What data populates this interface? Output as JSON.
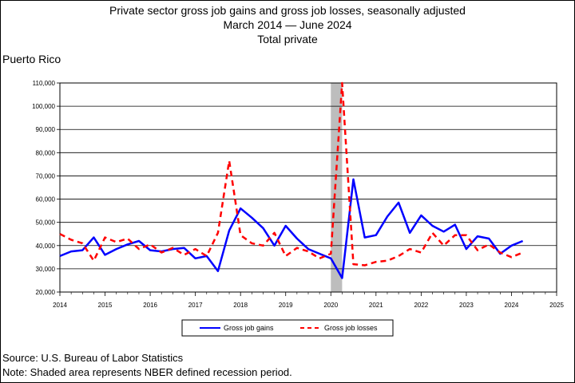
{
  "chart_data": {
    "type": "line",
    "title": "Private sector gross job gains and gross job losses, seasonally adjusted",
    "subtitle": "March 2014 — June 2024",
    "subtitle2": "Total private",
    "region": "Puerto Rico",
    "xlabel": "",
    "ylabel": "",
    "xlim": [
      2014,
      2025
    ],
    "ylim": [
      20000,
      110000
    ],
    "y_ticks": [
      "20,000",
      "30,000",
      "40,000",
      "50,000",
      "60,000",
      "70,000",
      "80,000",
      "90,000",
      "100,000",
      "110,000"
    ],
    "x_ticks": [
      "2014",
      "2015",
      "2016",
      "2017",
      "2018",
      "2019",
      "2020",
      "2021",
      "2022",
      "2023",
      "2024",
      "2025"
    ],
    "recession": [
      2020.0,
      2020.25
    ],
    "grid": true,
    "legend": "bottom-center",
    "series": [
      {
        "name": "Gross job gains",
        "color": "#0000ff",
        "style": "solid",
        "x": [
          2014.0,
          2014.25,
          2014.5,
          2014.75,
          2015.0,
          2015.25,
          2015.5,
          2015.75,
          2016.0,
          2016.25,
          2016.5,
          2016.75,
          2017.0,
          2017.25,
          2017.5,
          2017.75,
          2018.0,
          2018.25,
          2018.5,
          2018.75,
          2019.0,
          2019.25,
          2019.5,
          2019.75,
          2020.0,
          2020.25,
          2020.5,
          2020.75,
          2021.0,
          2021.25,
          2021.5,
          2021.75,
          2022.0,
          2022.25,
          2022.5,
          2022.75,
          2023.0,
          2023.25,
          2023.5,
          2023.75,
          2024.0,
          2024.25
        ],
        "values": [
          35500,
          37500,
          38000,
          43500,
          36000,
          38500,
          40500,
          42000,
          38000,
          37500,
          38500,
          39000,
          34500,
          35500,
          29000,
          46500,
          56000,
          52000,
          47500,
          40000,
          48500,
          43000,
          38500,
          36500,
          34500,
          26000,
          68500,
          43500,
          44500,
          52500,
          58500,
          45500,
          53000,
          48500,
          46000,
          49000,
          38500,
          44000,
          43000,
          36500,
          40000,
          42000
        ]
      },
      {
        "name": "Gross job losses",
        "color": "#ff0000",
        "style": "dashed",
        "x": [
          2014.0,
          2014.25,
          2014.5,
          2014.75,
          2015.0,
          2015.25,
          2015.5,
          2015.75,
          2016.0,
          2016.25,
          2016.5,
          2016.75,
          2017.0,
          2017.25,
          2017.5,
          2017.75,
          2018.0,
          2018.25,
          2018.5,
          2018.75,
          2019.0,
          2019.25,
          2019.5,
          2019.75,
          2020.0,
          2020.25,
          2020.5,
          2020.75,
          2021.0,
          2021.25,
          2021.5,
          2021.75,
          2022.0,
          2022.25,
          2022.5,
          2022.75,
          2023.0,
          2023.25,
          2023.5,
          2023.75,
          2024.0,
          2024.25
        ],
        "values": [
          45000,
          42500,
          41000,
          33500,
          43500,
          41500,
          43000,
          38500,
          40500,
          37000,
          39000,
          36000,
          38500,
          35500,
          45500,
          76500,
          44500,
          41000,
          40000,
          45500,
          35500,
          39000,
          37500,
          34500,
          36500,
          110000,
          32000,
          31500,
          33000,
          33500,
          35500,
          38500,
          37000,
          45500,
          40000,
          44500,
          44500,
          38000,
          40500,
          37000,
          35000,
          37000
        ]
      }
    ]
  },
  "footer": {
    "source": "Source: U.S. Bureau of Labor Statistics",
    "note": "Note: Shaded area represents NBER defined recession period."
  }
}
